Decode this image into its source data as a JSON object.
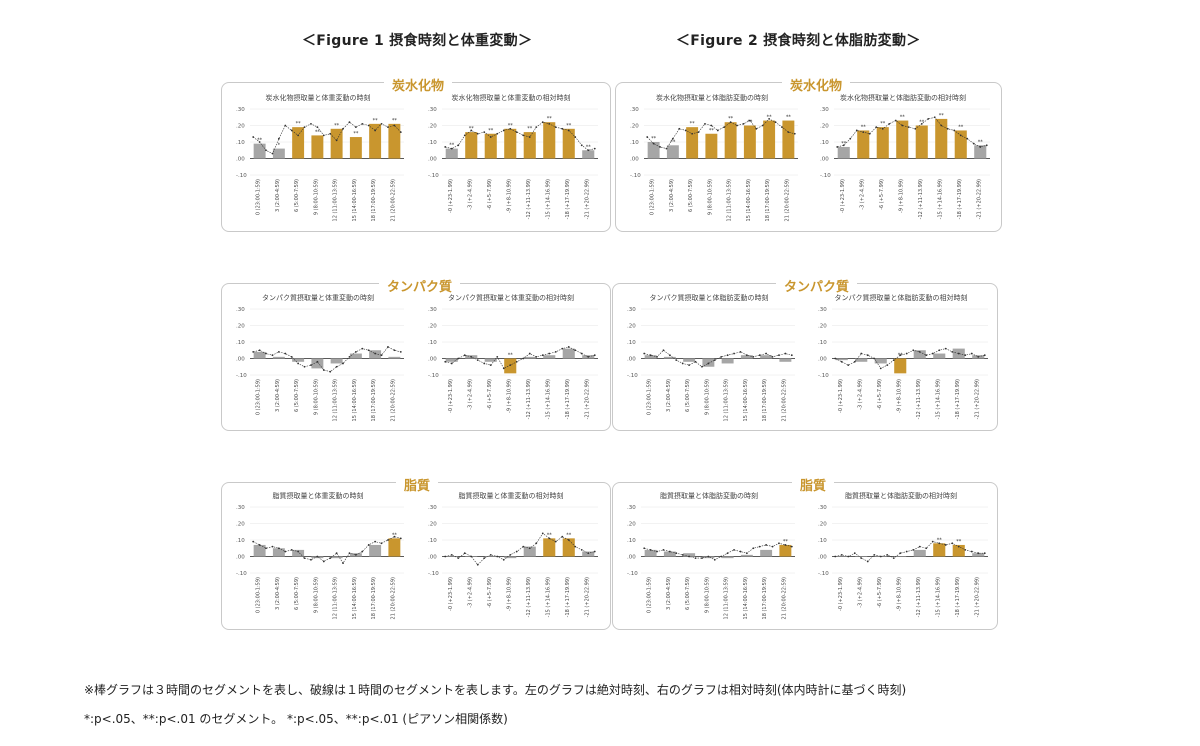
{
  "figures": [
    {
      "title": "＜Figure 1  摂食時刻と体重変動＞"
    },
    {
      "title": "＜Figure 2  摂食時刻と体脂肪変動＞"
    }
  ],
  "panels": [
    {
      "label": "炭水化物"
    },
    {
      "label": "炭水化物"
    },
    {
      "label": "タンパク質"
    },
    {
      "label": "タンパク質"
    },
    {
      "label": "脂質"
    },
    {
      "label": "脂質"
    }
  ],
  "colors": {
    "gray": "#a6a6a6",
    "gold": "#c9962e",
    "line": "#333333",
    "grid": "#e6e6e6",
    "zero": "#222222"
  },
  "yticks": [
    ".30",
    ".20",
    ".10",
    ".00",
    "-.10"
  ],
  "abs_cats": [
    "0 (23:00-1:59)",
    "3 (2:00-4:59)",
    "6 (5:00-7:59)",
    "9 (8:00-10:59)",
    "12 (11:00-13:59)",
    "15 (14:00-16:59)",
    "18 (17:00-19:59)",
    "21 (20:00-22:59)"
  ],
  "rel_cats": [
    "-0 (+23-1.99)",
    "-3 (+2-4.99)",
    "-6 (+5-7.99)",
    "-9 (+8-10.99)",
    "-12 (+11-13.99)",
    "-15 (+14-16.99)",
    "-18 (+17-19.99)",
    "-21 (+20-22.99)"
  ],
  "chart_data": [
    {
      "type": "bar",
      "title": "炭水化物摂取量と体重変動の時刻",
      "ylim": [
        -0.1,
        0.3
      ],
      "categories_ref": "abs_cats",
      "values": [
        0.09,
        0.06,
        0.19,
        0.14,
        0.18,
        0.13,
        0.21,
        0.21
      ],
      "highlight": [
        false,
        false,
        true,
        true,
        true,
        true,
        true,
        true
      ],
      "marks": [
        "**",
        "*",
        "**",
        "**",
        "**",
        "**",
        "**",
        "**"
      ],
      "line": [
        0.13,
        0.1,
        0.05,
        0.03,
        0.12,
        0.2,
        0.17,
        0.14,
        0.19,
        0.21,
        0.19,
        0.14,
        0.15,
        0.11,
        0.18,
        0.22,
        0.19,
        0.21,
        0.2,
        0.17,
        0.21,
        0.19,
        0.2,
        0.16
      ]
    },
    {
      "type": "bar",
      "title": "炭水化物摂取量と体重変動の相対時刻",
      "ylim": [
        -0.1,
        0.3
      ],
      "categories_ref": "rel_cats",
      "values": [
        0.06,
        0.16,
        0.15,
        0.18,
        0.16,
        0.22,
        0.18,
        0.05
      ],
      "highlight": [
        false,
        true,
        true,
        true,
        true,
        true,
        true,
        false
      ],
      "marks": [
        "**",
        "**",
        "**",
        "**",
        "**",
        "**",
        "**",
        "**"
      ],
      "line": [
        0.07,
        0.06,
        0.08,
        0.14,
        0.17,
        0.15,
        0.16,
        0.13,
        0.15,
        0.17,
        0.18,
        0.16,
        0.14,
        0.13,
        0.19,
        0.22,
        0.21,
        0.19,
        0.18,
        0.17,
        0.13,
        0.08,
        0.05,
        0.06
      ]
    },
    {
      "type": "bar",
      "title": "タンパク質摂取量と体重変動の時刻",
      "ylim": [
        -0.1,
        0.3
      ],
      "categories_ref": "abs_cats",
      "values": [
        0.04,
        0.01,
        -0.02,
        -0.06,
        -0.03,
        0.03,
        0.05,
        0.01
      ],
      "highlight": [
        false,
        false,
        false,
        false,
        false,
        false,
        false,
        false
      ],
      "marks": [
        "",
        "",
        "",
        "",
        "",
        "",
        "",
        ""
      ],
      "line": [
        0.04,
        0.05,
        0.03,
        0.02,
        0.04,
        0.03,
        0.01,
        -0.03,
        -0.05,
        -0.04,
        -0.02,
        -0.07,
        -0.08,
        -0.05,
        -0.03,
        0.01,
        0.04,
        0.06,
        0.05,
        0.03,
        0.02,
        0.07,
        0.05,
        0.04
      ]
    },
    {
      "type": "bar",
      "title": "タンパク質摂取量と体重変動の相対時刻",
      "ylim": [
        -0.1,
        0.3
      ],
      "categories_ref": "rel_cats",
      "values": [
        -0.02,
        0.02,
        -0.02,
        -0.09,
        0.01,
        0.02,
        0.06,
        0.02
      ],
      "highlight": [
        false,
        false,
        false,
        true,
        false,
        false,
        false,
        false
      ],
      "marks": [
        "",
        "",
        "",
        "**",
        "",
        "",
        "",
        ""
      ],
      "line": [
        -0.02,
        -0.03,
        0.0,
        0.02,
        0.01,
        -0.01,
        -0.03,
        -0.04,
        0.01,
        -0.06,
        -0.04,
        -0.02,
        0.0,
        0.03,
        0.01,
        0.02,
        0.03,
        0.04,
        0.06,
        0.07,
        0.05,
        0.03,
        0.01,
        0.02
      ]
    },
    {
      "type": "bar",
      "title": "脂質摂取量と体重変動の時刻",
      "ylim": [
        -0.1,
        0.3
      ],
      "categories_ref": "abs_cats",
      "values": [
        0.07,
        0.05,
        0.04,
        -0.01,
        -0.01,
        0.02,
        0.07,
        0.11
      ],
      "highlight": [
        false,
        false,
        false,
        false,
        false,
        false,
        false,
        true
      ],
      "marks": [
        "",
        "",
        "",
        "",
        "",
        "",
        "",
        "**"
      ],
      "line": [
        0.09,
        0.07,
        0.05,
        0.06,
        0.05,
        0.03,
        0.04,
        0.03,
        -0.01,
        -0.02,
        0.0,
        -0.03,
        -0.01,
        0.02,
        -0.04,
        0.02,
        0.01,
        0.03,
        0.07,
        0.09,
        0.08,
        0.1,
        0.12,
        0.11
      ]
    },
    {
      "type": "bar",
      "title": "脂質摂取量と体重変動の相対時刻",
      "ylim": [
        -0.1,
        0.3
      ],
      "categories_ref": "rel_cats",
      "values": [
        0.0,
        0.0,
        0.0,
        -0.01,
        0.06,
        0.11,
        0.11,
        0.03
      ],
      "highlight": [
        false,
        false,
        false,
        false,
        false,
        true,
        true,
        false
      ],
      "marks": [
        "",
        "",
        "",
        "",
        "",
        "**",
        "**",
        ""
      ],
      "line": [
        0.0,
        0.01,
        -0.01,
        0.02,
        0.0,
        -0.05,
        -0.01,
        0.01,
        0.0,
        -0.02,
        0.01,
        0.03,
        0.06,
        0.05,
        0.08,
        0.14,
        0.11,
        0.09,
        0.12,
        0.1,
        0.06,
        0.04,
        0.02,
        0.03
      ]
    },
    {
      "type": "bar",
      "title": "炭水化物摂取量と体脂肪変動の時刻",
      "ylim": [
        -0.1,
        0.3
      ],
      "categories_ref": "abs_cats",
      "values": [
        0.1,
        0.08,
        0.19,
        0.15,
        0.22,
        0.2,
        0.23,
        0.23
      ],
      "highlight": [
        false,
        false,
        true,
        true,
        true,
        true,
        true,
        true
      ],
      "marks": [
        "**",
        "**",
        "**",
        "**",
        "**",
        "**",
        "**",
        "**"
      ],
      "line": [
        0.13,
        0.09,
        0.07,
        0.06,
        0.12,
        0.18,
        0.17,
        0.15,
        0.16,
        0.21,
        0.2,
        0.17,
        0.19,
        0.22,
        0.2,
        0.21,
        0.23,
        0.18,
        0.2,
        0.24,
        0.22,
        0.19,
        0.16,
        0.15
      ]
    },
    {
      "type": "bar",
      "title": "炭水化物摂取量と体脂肪変動の相対時刻",
      "ylim": [
        -0.1,
        0.3
      ],
      "categories_ref": "rel_cats",
      "values": [
        0.07,
        0.17,
        0.19,
        0.23,
        0.2,
        0.24,
        0.17,
        0.08
      ],
      "highlight": [
        false,
        true,
        true,
        true,
        true,
        true,
        true,
        false
      ],
      "marks": [
        "**",
        "**",
        "**",
        "**",
        "**",
        "**",
        "**",
        "**"
      ],
      "line": [
        0.07,
        0.08,
        0.12,
        0.17,
        0.16,
        0.15,
        0.19,
        0.18,
        0.21,
        0.23,
        0.2,
        0.19,
        0.18,
        0.21,
        0.24,
        0.25,
        0.2,
        0.18,
        0.17,
        0.14,
        0.12,
        0.09,
        0.07,
        0.08
      ]
    },
    {
      "type": "bar",
      "title": "タンパク質摂取量と体脂肪変動の時刻",
      "ylim": [
        -0.1,
        0.3
      ],
      "categories_ref": "abs_cats",
      "values": [
        0.02,
        0.01,
        -0.02,
        -0.05,
        -0.03,
        0.02,
        0.02,
        -0.02
      ],
      "highlight": [
        false,
        false,
        false,
        false,
        false,
        false,
        false,
        false
      ],
      "marks": [
        "",
        "",
        "",
        "",
        "",
        "",
        "",
        ""
      ],
      "line": [
        0.03,
        0.02,
        0.01,
        0.05,
        0.02,
        -0.01,
        -0.03,
        -0.04,
        -0.02,
        -0.05,
        -0.03,
        -0.01,
        0.01,
        0.02,
        0.03,
        0.04,
        0.02,
        0.01,
        0.02,
        0.03,
        0.01,
        0.02,
        0.03,
        0.02
      ]
    },
    {
      "type": "bar",
      "title": "タンパク質摂取量と体脂肪変動の相対時刻",
      "ylim": [
        -0.1,
        0.3
      ],
      "categories_ref": "rel_cats",
      "values": [
        -0.01,
        -0.02,
        -0.03,
        -0.09,
        0.05,
        0.03,
        0.06,
        0.02
      ],
      "highlight": [
        false,
        false,
        false,
        true,
        false,
        false,
        false,
        false
      ],
      "marks": [
        "",
        "",
        "",
        "**",
        "",
        "",
        "",
        ""
      ],
      "line": [
        0.0,
        -0.02,
        -0.04,
        -0.02,
        0.03,
        0.02,
        0.0,
        -0.06,
        -0.04,
        -0.01,
        0.02,
        0.03,
        0.05,
        0.04,
        0.02,
        0.03,
        0.05,
        0.06,
        0.04,
        0.03,
        0.02,
        0.03,
        0.01,
        0.02
      ]
    },
    {
      "type": "bar",
      "title": "脂質摂取量と体脂肪変動の時刻",
      "ylim": [
        -0.1,
        0.3
      ],
      "categories_ref": "abs_cats",
      "values": [
        0.04,
        0.03,
        0.02,
        -0.01,
        -0.01,
        0.01,
        0.04,
        0.07
      ],
      "highlight": [
        false,
        false,
        false,
        false,
        false,
        false,
        false,
        true
      ],
      "marks": [
        "",
        "",
        "",
        "",
        "",
        "",
        "",
        "**"
      ],
      "line": [
        0.05,
        0.04,
        0.03,
        0.04,
        0.03,
        0.02,
        0.01,
        0.0,
        -0.01,
        -0.01,
        0.0,
        -0.02,
        0.0,
        0.02,
        0.04,
        0.03,
        0.02,
        0.05,
        0.06,
        0.07,
        0.06,
        0.08,
        0.07,
        0.06
      ]
    },
    {
      "type": "bar",
      "title": "脂質摂取量と体脂肪変動の相対時刻",
      "ylim": [
        -0.1,
        0.3
      ],
      "categories_ref": "rel_cats",
      "values": [
        0.0,
        0.0,
        0.0,
        0.0,
        0.04,
        0.08,
        0.07,
        0.02
      ],
      "highlight": [
        false,
        false,
        false,
        false,
        false,
        true,
        true,
        false
      ],
      "marks": [
        "",
        "",
        "",
        "",
        "",
        "**",
        "**",
        ""
      ],
      "line": [
        0.0,
        0.01,
        0.0,
        0.02,
        -0.01,
        -0.03,
        0.01,
        0.0,
        0.01,
        -0.01,
        0.02,
        0.03,
        0.04,
        0.06,
        0.05,
        0.09,
        0.08,
        0.07,
        0.08,
        0.06,
        0.04,
        0.03,
        0.02,
        0.02
      ]
    }
  ],
  "footnotes": [
    "※棒グラフは３時間のセグメントを表し、破線は１時間のセグメントを表します。左のグラフは絶対時刻、右のグラフは相対時刻(体内時計に基づく時刻)",
    "*:p<.05、**:p<.01 のセグメント。 *:p<.05、**:p<.01 (ピアソン相関係数)"
  ]
}
